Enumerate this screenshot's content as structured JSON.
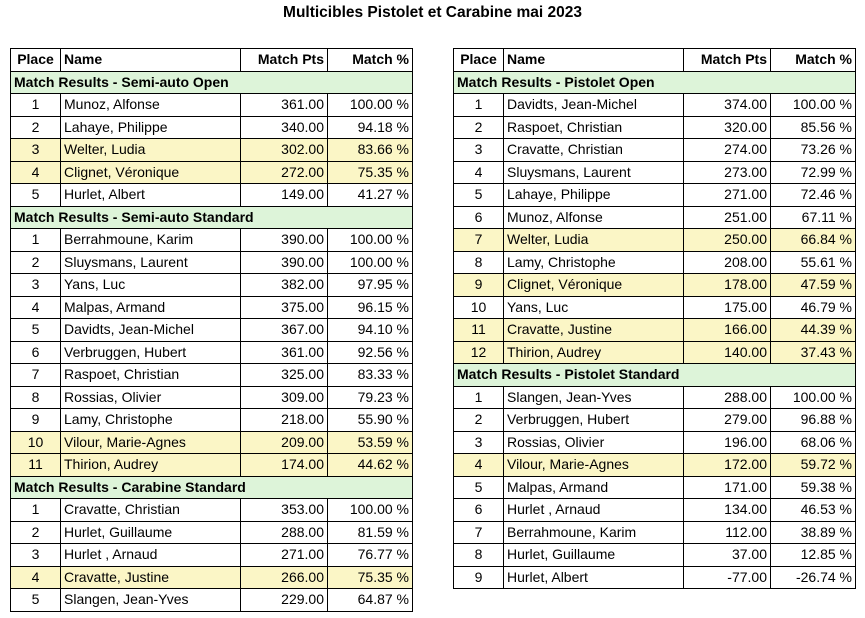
{
  "title": "Multicibles Pistolet et Carabine mai 2023",
  "columns": {
    "place": "Place",
    "name": "Name",
    "pts": "Match Pts",
    "pct": "Match %"
  },
  "left": [
    {
      "type": "section",
      "title": "Match Results - Semi-auto Open"
    },
    {
      "place": "1",
      "name": "Munoz, Alfonse",
      "pts": "361.00",
      "pct": "100.00 %",
      "hl": false
    },
    {
      "place": "2",
      "name": "Lahaye, Philippe",
      "pts": "340.00",
      "pct": "94.18 %",
      "hl": false
    },
    {
      "place": "3",
      "name": "Welter, Ludia",
      "pts": "302.00",
      "pct": "83.66 %",
      "hl": true
    },
    {
      "place": "4",
      "name": "Clignet, Véronique",
      "pts": "272.00",
      "pct": "75.35 %",
      "hl": true
    },
    {
      "place": "5",
      "name": "Hurlet, Albert",
      "pts": "149.00",
      "pct": "41.27 %",
      "hl": false
    },
    {
      "type": "section",
      "title": "Match Results - Semi-auto Standard"
    },
    {
      "place": "1",
      "name": "Berrahmoune, Karim",
      "pts": "390.00",
      "pct": "100.00 %",
      "hl": false
    },
    {
      "place": "2",
      "name": "Sluysmans, Laurent",
      "pts": "390.00",
      "pct": "100.00 %",
      "hl": false
    },
    {
      "place": "3",
      "name": "Yans, Luc",
      "pts": "382.00",
      "pct": "97.95 %",
      "hl": false
    },
    {
      "place": "4",
      "name": "Malpas, Armand",
      "pts": "375.00",
      "pct": "96.15 %",
      "hl": false
    },
    {
      "place": "5",
      "name": "Davidts, Jean-Michel",
      "pts": "367.00",
      "pct": "94.10 %",
      "hl": false
    },
    {
      "place": "6",
      "name": "Verbruggen, Hubert",
      "pts": "361.00",
      "pct": "92.56 %",
      "hl": false
    },
    {
      "place": "7",
      "name": "Raspoet, Christian",
      "pts": "325.00",
      "pct": "83.33 %",
      "hl": false
    },
    {
      "place": "8",
      "name": "Rossias, Olivier",
      "pts": "309.00",
      "pct": "79.23 %",
      "hl": false
    },
    {
      "place": "9",
      "name": "Lamy, Christophe",
      "pts": "218.00",
      "pct": "55.90 %",
      "hl": false
    },
    {
      "place": "10",
      "name": "Vilour, Marie-Agnes",
      "pts": "209.00",
      "pct": "53.59 %",
      "hl": true
    },
    {
      "place": "11",
      "name": "Thirion, Audrey",
      "pts": "174.00",
      "pct": "44.62 %",
      "hl": true
    },
    {
      "type": "section",
      "title": "Match Results - Carabine Standard"
    },
    {
      "place": "1",
      "name": "Cravatte, Christian",
      "pts": "353.00",
      "pct": "100.00 %",
      "hl": false
    },
    {
      "place": "2",
      "name": "Hurlet, Guillaume",
      "pts": "288.00",
      "pct": "81.59 %",
      "hl": false
    },
    {
      "place": "3",
      "name": "Hurlet , Arnaud",
      "pts": "271.00",
      "pct": "76.77 %",
      "hl": false
    },
    {
      "place": "4",
      "name": "Cravatte, Justine",
      "pts": "266.00",
      "pct": "75.35 %",
      "hl": true
    },
    {
      "place": "5",
      "name": "Slangen, Jean-Yves",
      "pts": "229.00",
      "pct": "64.87 %",
      "hl": false
    }
  ],
  "right": [
    {
      "type": "section",
      "title": "Match Results - Pistolet Open"
    },
    {
      "place": "1",
      "name": "Davidts, Jean-Michel",
      "pts": "374.00",
      "pct": "100.00 %",
      "hl": false
    },
    {
      "place": "2",
      "name": "Raspoet, Christian",
      "pts": "320.00",
      "pct": "85.56 %",
      "hl": false
    },
    {
      "place": "3",
      "name": "Cravatte, Christian",
      "pts": "274.00",
      "pct": "73.26 %",
      "hl": false
    },
    {
      "place": "4",
      "name": "Sluysmans, Laurent",
      "pts": "273.00",
      "pct": "72.99 %",
      "hl": false
    },
    {
      "place": "5",
      "name": "Lahaye, Philippe",
      "pts": "271.00",
      "pct": "72.46 %",
      "hl": false
    },
    {
      "place": "6",
      "name": "Munoz, Alfonse",
      "pts": "251.00",
      "pct": "67.11 %",
      "hl": false
    },
    {
      "place": "7",
      "name": "Welter, Ludia",
      "pts": "250.00",
      "pct": "66.84 %",
      "hl": true
    },
    {
      "place": "8",
      "name": "Lamy, Christophe",
      "pts": "208.00",
      "pct": "55.61 %",
      "hl": false
    },
    {
      "place": "9",
      "name": "Clignet, Véronique",
      "pts": "178.00",
      "pct": "47.59 %",
      "hl": true
    },
    {
      "place": "10",
      "name": "Yans, Luc",
      "pts": "175.00",
      "pct": "46.79 %",
      "hl": false
    },
    {
      "place": "11",
      "name": "Cravatte, Justine",
      "pts": "166.00",
      "pct": "44.39 %",
      "hl": true
    },
    {
      "place": "12",
      "name": "Thirion, Audrey",
      "pts": "140.00",
      "pct": "37.43 %",
      "hl": true
    },
    {
      "type": "section",
      "title": "Match Results - Pistolet Standard"
    },
    {
      "place": "1",
      "name": "Slangen, Jean-Yves",
      "pts": "288.00",
      "pct": "100.00 %",
      "hl": false
    },
    {
      "place": "2",
      "name": "Verbruggen, Hubert",
      "pts": "279.00",
      "pct": "96.88 %",
      "hl": false
    },
    {
      "place": "3",
      "name": "Rossias, Olivier",
      "pts": "196.00",
      "pct": "68.06 %",
      "hl": false
    },
    {
      "place": "4",
      "name": "Vilour, Marie-Agnes",
      "pts": "172.00",
      "pct": "59.72 %",
      "hl": true
    },
    {
      "place": "5",
      "name": "Malpas, Armand",
      "pts": "171.00",
      "pct": "59.38 %",
      "hl": false
    },
    {
      "place": "6",
      "name": "Hurlet , Arnaud",
      "pts": "134.00",
      "pct": "46.53 %",
      "hl": false
    },
    {
      "place": "7",
      "name": "Berrahmoune, Karim",
      "pts": "112.00",
      "pct": "38.89 %",
      "hl": false
    },
    {
      "place": "8",
      "name": "Hurlet, Guillaume",
      "pts": "37.00",
      "pct": "12.85 %",
      "hl": false
    },
    {
      "place": "9",
      "name": "Hurlet, Albert",
      "pts": "-77.00",
      "pct": "-26.74 %",
      "hl": false
    }
  ]
}
